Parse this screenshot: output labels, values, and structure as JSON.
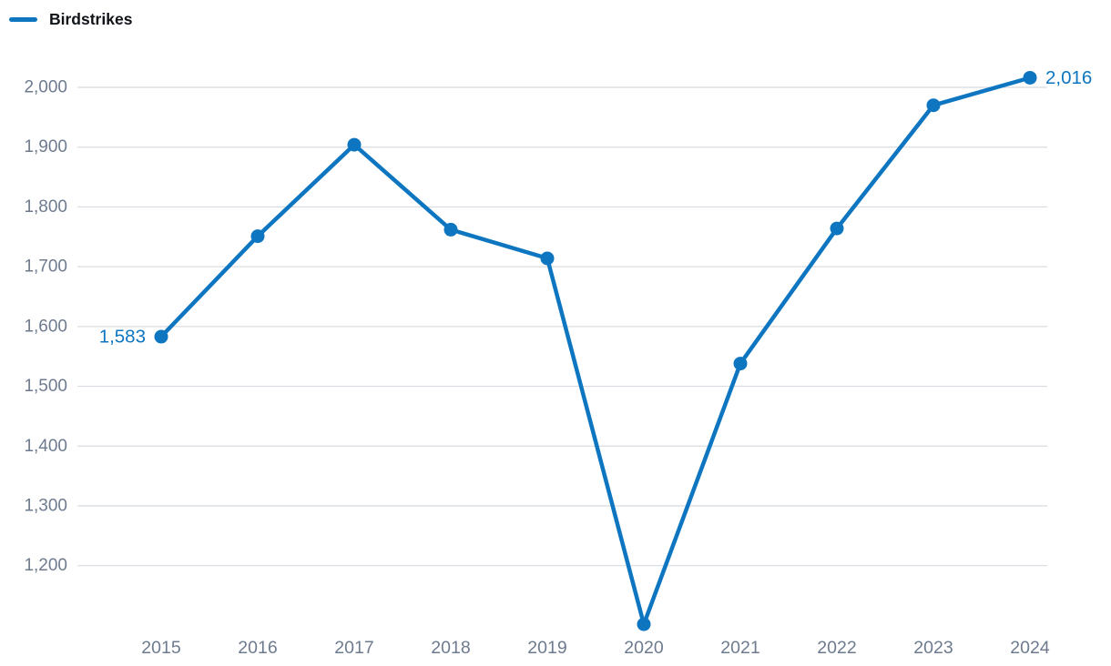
{
  "legend": {
    "label": "Birdstrikes"
  },
  "colors": {
    "line": "#0e76c0",
    "grid": "#d8dce1",
    "axis_text": "#6e7b8f",
    "legend_text": "#101419",
    "background": "#ffffff"
  },
  "chart_data": {
    "type": "line",
    "title": "",
    "categories": [
      "2015",
      "2016",
      "2017",
      "2018",
      "2019",
      "2020",
      "2021",
      "2022",
      "2023",
      "2024"
    ],
    "series": [
      {
        "name": "Birdstrikes",
        "values": [
          1583,
          1751,
          1904,
          1762,
          1714,
          1102,
          1538,
          1764,
          1970,
          2016
        ]
      }
    ],
    "first_point_label": "1,583",
    "last_point_label": "2,016",
    "y_ticks": [
      {
        "value": 2000,
        "label": "2,000"
      },
      {
        "value": 1900,
        "label": "1,900"
      },
      {
        "value": 1800,
        "label": "1,800"
      },
      {
        "value": 1700,
        "label": "1,700"
      },
      {
        "value": 1600,
        "label": "1,600"
      },
      {
        "value": 1500,
        "label": "1,500"
      },
      {
        "value": 1400,
        "label": "1,400"
      },
      {
        "value": 1300,
        "label": "1,300"
      },
      {
        "value": 1200,
        "label": "1,200"
      }
    ],
    "xlabel": "",
    "ylabel": "",
    "ylim": [
      1095,
      2040
    ],
    "grid": true,
    "legend_position": "top-left"
  }
}
